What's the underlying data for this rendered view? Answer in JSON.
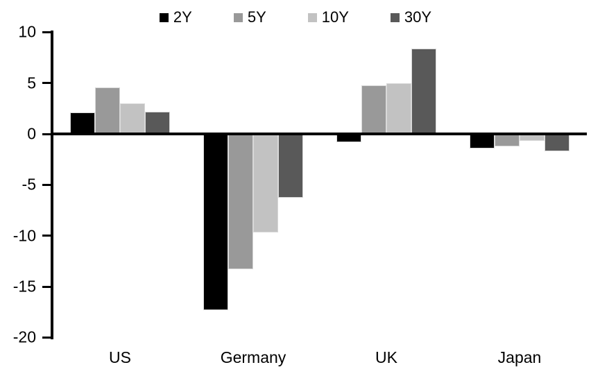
{
  "chart_data": {
    "type": "bar",
    "title": "",
    "categories": [
      "US",
      "Germany",
      "UK",
      "Japan"
    ],
    "series": [
      {
        "name": "2Y",
        "color": "#000000",
        "values": [
          2.1,
          -17.3,
          -0.8,
          -1.4
        ]
      },
      {
        "name": "5Y",
        "color": "#999999",
        "values": [
          4.6,
          -13.3,
          4.8,
          -1.2
        ]
      },
      {
        "name": "10Y",
        "color": "#c2c2c2",
        "values": [
          3.0,
          -9.7,
          5.0,
          -0.7
        ]
      },
      {
        "name": "30Y",
        "color": "#595959",
        "values": [
          2.2,
          -6.3,
          8.4,
          -1.7
        ]
      }
    ],
    "ylim": [
      -20,
      10
    ],
    "yticks": [
      10,
      5,
      0,
      -5,
      -10,
      -15,
      -20
    ],
    "xlabel": "",
    "ylabel": "",
    "legend_position": "top-center",
    "grid": false,
    "axis_color": "#000000",
    "background_color": "#ffffff"
  }
}
